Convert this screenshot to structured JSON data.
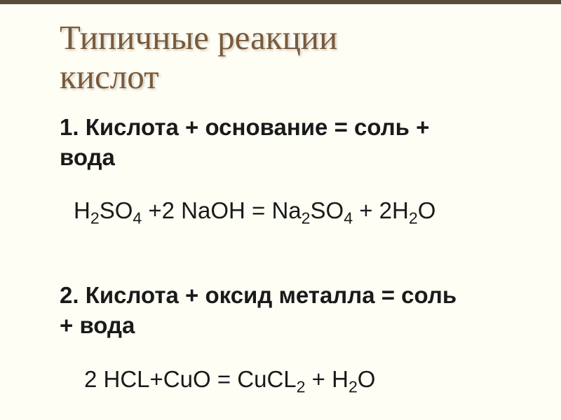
{
  "title_line1": "Типичные реакции",
  "title_line2": "кислот",
  "item1_line1": "1. Кислота + основание = соль +",
  "item1_line2": "вода",
  "formula1_part1": "H",
  "formula1_sub1": "2",
  "formula1_part2": "SO",
  "formula1_sub2": "4",
  "formula1_part3": " +2 NaOH =   Na",
  "formula1_sub3": "2",
  "formula1_part4": "SO",
  "formula1_sub4": "4",
  "formula1_part5": " + 2H",
  "formula1_sub5": "2",
  "formula1_part6": "O",
  "item2_line1": "2. Кислота + оксид металла = соль",
  "item2_line2": "+ вода",
  "formula2_part1": "2 HCL+CuO = CuCL",
  "formula2_sub1": "2",
  "formula2_part2": " + H",
  "formula2_sub2": "2",
  "formula2_part3": "O",
  "colors": {
    "background": "#fffef5",
    "top_border": "#5a4a3a",
    "title_color": "#7a5a3a",
    "text_color": "#1a1a1a"
  },
  "fonts": {
    "title_size": 49,
    "body_size": 33,
    "title_family": "Georgia",
    "body_family": "Arial"
  }
}
